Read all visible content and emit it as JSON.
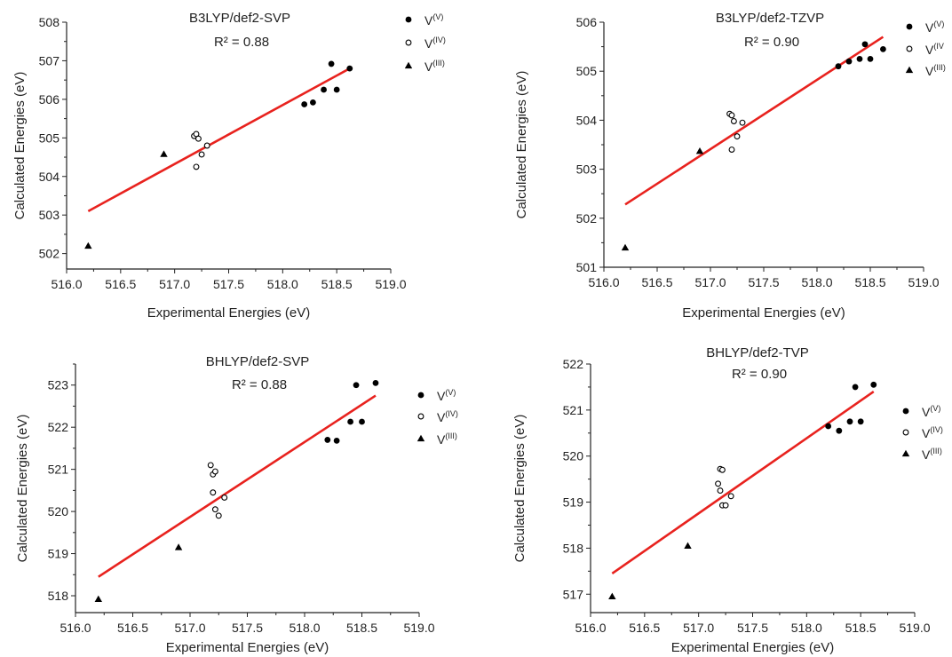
{
  "chart_data": [
    {
      "type": "scatter",
      "title": "B3LYP/def2-SVP",
      "annotation": "R² = 0.88",
      "xlabel": "Experimental Energies (eV)",
      "ylabel": "Calculated Energies (eV)",
      "xlim": [
        516.0,
        519.0
      ],
      "ylim": [
        501.6,
        508.0
      ],
      "xticks": [
        "516.0",
        "516.5",
        "517.0",
        "517.5",
        "518.0",
        "518.5",
        "519.0"
      ],
      "yticks": [
        "502",
        "503",
        "504",
        "505",
        "506",
        "507",
        "508"
      ],
      "series": [
        {
          "name": "V",
          "sup": "(V)",
          "marker": "filled-circle",
          "x": [
            518.2,
            518.28,
            518.38,
            518.45,
            518.5,
            518.62
          ],
          "y": [
            505.87,
            505.92,
            506.25,
            506.92,
            506.25,
            506.8
          ]
        },
        {
          "name": "V",
          "sup": "(IV)",
          "marker": "open-circle",
          "x": [
            517.18,
            517.2,
            517.2,
            517.22,
            517.25,
            517.3
          ],
          "y": [
            505.05,
            505.1,
            504.25,
            504.98,
            504.57,
            504.8
          ]
        },
        {
          "name": "V",
          "sup": "(III)",
          "marker": "filled-triangle",
          "x": [
            516.2,
            516.9
          ],
          "y": [
            502.2,
            504.58
          ]
        }
      ],
      "fit_line": {
        "x": [
          516.2,
          518.62
        ],
        "y": [
          503.1,
          506.8
        ],
        "color": "#e8221e"
      }
    },
    {
      "type": "scatter",
      "title": "B3LYP/def2-TZVP",
      "annotation": "R² = 0.90",
      "xlabel": "Experimental Energies (eV)",
      "ylabel": "Calculated Energies (eV)",
      "xlim": [
        516.0,
        519.0
      ],
      "ylim": [
        501.0,
        506.0
      ],
      "xticks": [
        "516.0",
        "516.5",
        "517.0",
        "517.5",
        "518.0",
        "518.5",
        "519.0"
      ],
      "yticks": [
        "501",
        "502",
        "503",
        "504",
        "505",
        "506"
      ],
      "series": [
        {
          "name": "V",
          "sup": "(V)",
          "marker": "filled-circle",
          "x": [
            518.2,
            518.3,
            518.4,
            518.45,
            518.5,
            518.62
          ],
          "y": [
            505.1,
            505.2,
            505.25,
            505.55,
            505.25,
            505.45
          ]
        },
        {
          "name": "V",
          "sup": "(IV",
          "marker": "open-circle",
          "x": [
            517.18,
            517.2,
            517.22,
            517.2,
            517.25,
            517.3
          ],
          "y": [
            504.13,
            504.1,
            503.98,
            503.4,
            503.67,
            503.95
          ]
        },
        {
          "name": "V",
          "sup": "(III)",
          "marker": "filled-triangle",
          "x": [
            516.2,
            516.9
          ],
          "y": [
            501.4,
            503.37
          ]
        }
      ],
      "fit_line": {
        "x": [
          516.2,
          518.62
        ],
        "y": [
          502.28,
          505.7
        ],
        "color": "#e8221e"
      }
    },
    {
      "type": "scatter",
      "title": "BHLYP/def2-SVP",
      "annotation": "R² = 0.88",
      "xlabel": "Experimental Energies (eV)",
      "ylabel": "Calculated Energies (eV)",
      "xlim": [
        516.0,
        519.0
      ],
      "ylim": [
        517.6,
        523.5
      ],
      "xticks": [
        "516.0",
        "516.5",
        "517.0",
        "517.5",
        "518.0",
        "518.5",
        "519.0"
      ],
      "yticks": [
        "518",
        "519",
        "520",
        "521",
        "522",
        "523"
      ],
      "series": [
        {
          "name": "V",
          "sup": "(V)",
          "marker": "filled-circle",
          "x": [
            518.2,
            518.28,
            518.4,
            518.45,
            518.5,
            518.62
          ],
          "y": [
            521.7,
            521.68,
            522.13,
            523.0,
            522.13,
            523.05
          ]
        },
        {
          "name": "V",
          "sup": "(IV)",
          "marker": "open-circle",
          "x": [
            517.18,
            517.2,
            517.22,
            517.2,
            517.22,
            517.25,
            517.3
          ],
          "y": [
            521.1,
            520.88,
            520.95,
            520.45,
            520.05,
            519.9,
            520.33
          ]
        },
        {
          "name": "V",
          "sup": "(III)",
          "marker": "filled-triangle",
          "x": [
            516.2,
            516.9
          ],
          "y": [
            517.92,
            519.15
          ]
        }
      ],
      "fit_line": {
        "x": [
          516.2,
          518.62
        ],
        "y": [
          518.45,
          522.75
        ],
        "color": "#e8221e"
      }
    },
    {
      "type": "scatter",
      "title": "BHLYP/def2-TVP",
      "annotation": "R² = 0.90",
      "xlabel": "Experimental Energies (eV)",
      "ylabel": "Calculated Energies (eV)",
      "xlim": [
        516.0,
        519.0
      ],
      "ylim": [
        516.6,
        522.0
      ],
      "xticks": [
        "516.0",
        "516.5",
        "517.0",
        "517.5",
        "518.0",
        "518.5",
        "519.0"
      ],
      "yticks": [
        "517",
        "518",
        "519",
        "520",
        "521",
        "522"
      ],
      "series": [
        {
          "name": "V",
          "sup": "(V)",
          "marker": "filled-circle",
          "x": [
            518.2,
            518.3,
            518.4,
            518.45,
            518.5,
            518.62
          ],
          "y": [
            520.65,
            520.55,
            520.75,
            521.5,
            520.75,
            521.55
          ]
        },
        {
          "name": "V",
          "sup": "(IV)",
          "marker": "open-circle",
          "x": [
            517.18,
            517.2,
            517.22,
            517.2,
            517.22,
            517.25,
            517.3
          ],
          "y": [
            519.4,
            519.72,
            519.7,
            519.25,
            518.93,
            518.93,
            519.13
          ]
        },
        {
          "name": "V",
          "sup": "(III)",
          "marker": "filled-triangle",
          "x": [
            516.2,
            516.9
          ],
          "y": [
            516.95,
            518.05
          ]
        }
      ],
      "fit_line": {
        "x": [
          516.2,
          518.62
        ],
        "y": [
          517.45,
          521.4
        ],
        "color": "#e8221e"
      }
    }
  ]
}
